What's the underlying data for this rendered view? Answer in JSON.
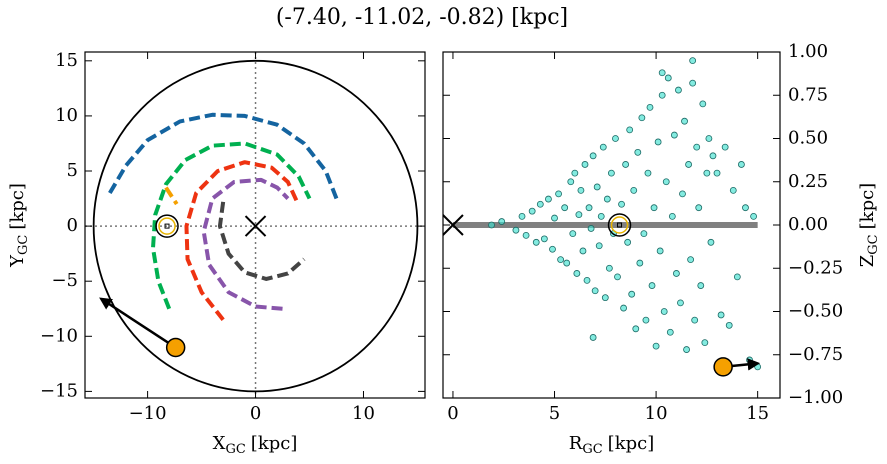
{
  "title": "(-7.40, -11.02, -0.82) [kpc]",
  "chart_data": [
    {
      "type": "line",
      "xlabel": {
        "main": "X",
        "sub": "GC",
        "unit": "[kpc]"
      },
      "ylabel": {
        "main": "Y",
        "sub": "GC",
        "unit": "[kpc]"
      },
      "xlim": [
        -15.8,
        15.7
      ],
      "ylim": [
        -15.6,
        15.8
      ],
      "xticks": [
        {
          "value": -10,
          "label": "−10"
        },
        0,
        10
      ],
      "yticks": [
        {
          "value": -15,
          "label": "−15"
        },
        {
          "value": -10,
          "label": "−10"
        },
        {
          "value": -5,
          "label": "−5"
        },
        0,
        5,
        10,
        15
      ],
      "circle_radius": 15,
      "center": [
        0,
        0
      ],
      "sun": [
        -8.2,
        0
      ],
      "target": [
        -7.4,
        -11.02
      ],
      "arrow_to": [
        -14.3,
        -6.6
      ],
      "series": [
        {
          "color": "#1464a0",
          "x": [
            -13.5,
            -12,
            -10,
            -7,
            -4,
            -1,
            2,
            4.5,
            6.5,
            7.5
          ],
          "y": [
            3,
            5.5,
            7.8,
            9.5,
            10.1,
            10,
            9.2,
            7.5,
            5,
            2.5
          ]
        },
        {
          "color": "#00b050",
          "x": [
            -8,
            -9,
            -9.5,
            -9.3,
            -8.3,
            -6.5,
            -4,
            -1,
            2,
            4,
            5
          ],
          "y": [
            -7.5,
            -5,
            -2,
            1,
            3.8,
            6,
            7.3,
            7.5,
            6.5,
            4.5,
            2.5
          ]
        },
        {
          "color": "#ee3311",
          "x": [
            -3,
            -5,
            -6.3,
            -6.4,
            -5.5,
            -3.5,
            -1,
            1.5,
            3,
            3.8
          ],
          "y": [
            -8.5,
            -6,
            -3,
            0,
            3,
            5,
            5.8,
            5.3,
            4,
            2.3
          ]
        },
        {
          "color": "#8855aa",
          "x": [
            2.5,
            0,
            -2.5,
            -4.3,
            -4.8,
            -4,
            -2,
            0.5,
            2,
            3
          ],
          "y": [
            -7.5,
            -7.3,
            -6,
            -3.5,
            -0.5,
            2.5,
            4,
            4.2,
            3.5,
            2.5
          ]
        },
        {
          "color": "#444444",
          "x": [
            -3,
            -3.3,
            -2.5,
            -1,
            1,
            3,
            4.5
          ],
          "y": [
            2.2,
            0,
            -2.5,
            -4.2,
            -4.8,
            -4.3,
            -3
          ]
        },
        {
          "color": "#f5a000",
          "x": [
            -8.3,
            -7.3
          ],
          "y": [
            3.5,
            2
          ]
        }
      ]
    },
    {
      "type": "scatter",
      "xlabel": {
        "main": "R",
        "sub": "GC",
        "unit": "[kpc]"
      },
      "ylabel": {
        "main": "Z",
        "sub": "GC",
        "unit": "[kpc]"
      },
      "xlim": [
        -0.49,
        16.1
      ],
      "ylim": [
        -1,
        1
      ],
      "xticks": [
        0,
        5,
        10,
        15
      ],
      "yticks": [
        {
          "value": -1,
          "label": "−1.00"
        },
        {
          "value": -0.75,
          "label": "−0.75"
        },
        {
          "value": -0.5,
          "label": "−0.50"
        },
        {
          "value": -0.25,
          "label": "−0.25"
        },
        {
          "value": 0,
          "label": "0.00"
        },
        0.25,
        {
          "value": 0.5,
          "label": "0.50"
        },
        0.75,
        {
          "value": 1,
          "label": "1.00"
        }
      ],
      "center": [
        0,
        0
      ],
      "sun": [
        8.2,
        0
      ],
      "target": [
        13.3,
        -0.82
      ],
      "arrow_to": [
        15,
        -0.8
      ],
      "disk_x": [
        0,
        15
      ],
      "color": "#40e0d0",
      "x": [
        1.9,
        2.4,
        3.1,
        3.4,
        3.6,
        3.9,
        4.1,
        4.3,
        4.5,
        4.7,
        4.9,
        5.0,
        5.2,
        5.3,
        5.5,
        5.6,
        5.8,
        5.9,
        6.0,
        6.1,
        6.2,
        6.3,
        6.4,
        6.5,
        6.6,
        6.7,
        6.8,
        6.9,
        7.0,
        7.1,
        7.2,
        7.3,
        7.4,
        7.5,
        7.6,
        7.7,
        7.8,
        7.9,
        8.0,
        8.1,
        8.3,
        8.4,
        8.5,
        8.6,
        8.7,
        8.8,
        8.9,
        9.0,
        9.1,
        9.2,
        9.3,
        9.4,
        9.5,
        9.6,
        9.7,
        9.8,
        9.9,
        10.0,
        10.1,
        10.2,
        10.3,
        10.4,
        10.5,
        10.6,
        10.7,
        10.8,
        10.9,
        11.0,
        11.1,
        11.2,
        11.3,
        11.4,
        11.5,
        11.6,
        11.7,
        11.8,
        11.9,
        12.0,
        12.1,
        12.2,
        12.3,
        12.4,
        12.5,
        12.6,
        12.7,
        12.8,
        13.0,
        13.2,
        13.4,
        13.6,
        13.8,
        14.0,
        14.2,
        14.4,
        14.6,
        14.8,
        15.0,
        10.3,
        11.8,
        6.9
      ],
      "y": [
        0.0,
        0.02,
        -0.03,
        0.05,
        -0.06,
        0.08,
        -0.1,
        0.12,
        -0.08,
        0.15,
        -0.14,
        0.04,
        0.18,
        -0.2,
        0.1,
        -0.22,
        0.25,
        -0.05,
        0.3,
        -0.28,
        0.06,
        0.2,
        -0.15,
        0.35,
        -0.32,
        0.1,
        -0.02,
        0.4,
        -0.38,
        0.22,
        -0.12,
        0.05,
        0.45,
        -0.42,
        0.15,
        -0.25,
        0.3,
        -0.05,
        0.5,
        -0.3,
        0.12,
        -0.48,
        0.35,
        -0.1,
        0.55,
        -0.4,
        0.2,
        -0.6,
        0.42,
        -0.22,
        0.62,
        -0.05,
        -0.55,
        0.3,
        0.68,
        -0.35,
        0.1,
        -0.7,
        0.48,
        -0.15,
        0.75,
        -0.5,
        0.25,
        0.85,
        -0.62,
        0.05,
        0.52,
        -0.28,
        0.78,
        -0.45,
        0.18,
        0.6,
        -0.72,
        0.35,
        -0.2,
        0.95,
        -0.55,
        0.45,
        0.1,
        -0.35,
        0.7,
        -0.68,
        0.3,
        0.5,
        -0.1,
        0.4,
        0.3,
        -0.52,
        0.45,
        -0.58,
        0.2,
        -0.3,
        0.35,
        0.1,
        -0.78,
        0.05,
        -0.82,
        0.88,
        0.82,
        -0.65
      ]
    }
  ]
}
